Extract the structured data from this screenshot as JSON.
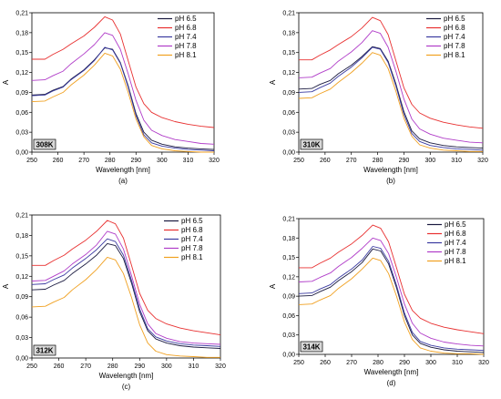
{
  "chart_data": [
    {
      "type": "line",
      "panel_label": "308K",
      "caption": "(a)",
      "xlabel": "Wavelength [nm]",
      "ylabel": "A",
      "xlim": [
        250,
        320
      ],
      "ylim": [
        0,
        0.21
      ],
      "xticks": [
        "250",
        "260",
        "270",
        "280",
        "290",
        "300",
        "310",
        "320"
      ],
      "yticks": [
        "0,00",
        "0,03",
        "0,06",
        "0,09",
        "0,12",
        "0,15",
        "0,18",
        "0,21"
      ],
      "legend_position": "top-right",
      "series": [
        {
          "name": "pH 6.5",
          "color": "#1a1a40",
          "x": [
            250,
            255,
            258,
            262,
            265,
            270,
            274,
            278,
            281,
            284,
            287,
            290,
            293,
            296,
            300,
            305,
            310,
            315,
            320
          ],
          "y": [
            0.086,
            0.087,
            0.093,
            0.099,
            0.11,
            0.124,
            0.139,
            0.157,
            0.155,
            0.135,
            0.1,
            0.058,
            0.03,
            0.018,
            0.012,
            0.008,
            0.006,
            0.005,
            0.004
          ]
        },
        {
          "name": "pH 6.8",
          "color": "#e83030",
          "x": [
            250,
            255,
            258,
            262,
            265,
            270,
            274,
            278,
            281,
            284,
            287,
            290,
            293,
            296,
            300,
            305,
            310,
            315,
            320
          ],
          "y": [
            0.14,
            0.14,
            0.147,
            0.155,
            0.163,
            0.175,
            0.188,
            0.204,
            0.199,
            0.178,
            0.138,
            0.098,
            0.073,
            0.06,
            0.052,
            0.046,
            0.042,
            0.039,
            0.037
          ]
        },
        {
          "name": "pH 7.4",
          "color": "#3a3aa0",
          "x": [
            250,
            255,
            258,
            262,
            265,
            270,
            274,
            278,
            281,
            284,
            287,
            290,
            293,
            296,
            300,
            305,
            310,
            315,
            320
          ],
          "y": [
            0.085,
            0.086,
            0.092,
            0.098,
            0.109,
            0.123,
            0.138,
            0.158,
            0.154,
            0.134,
            0.098,
            0.055,
            0.026,
            0.014,
            0.009,
            0.006,
            0.004,
            0.003,
            0.002
          ]
        },
        {
          "name": "pH 7.8",
          "color": "#b03cc8",
          "x": [
            250,
            255,
            258,
            262,
            265,
            270,
            274,
            278,
            281,
            284,
            287,
            290,
            293,
            296,
            300,
            305,
            310,
            315,
            320
          ],
          "y": [
            0.108,
            0.109,
            0.115,
            0.122,
            0.133,
            0.148,
            0.162,
            0.18,
            0.176,
            0.155,
            0.118,
            0.078,
            0.048,
            0.033,
            0.025,
            0.019,
            0.016,
            0.013,
            0.012
          ]
        },
        {
          "name": "pH 8.1",
          "color": "#f0a020",
          "x": [
            250,
            255,
            258,
            262,
            265,
            270,
            274,
            278,
            281,
            284,
            287,
            290,
            293,
            296,
            300,
            305,
            310,
            315,
            320
          ],
          "y": [
            0.076,
            0.077,
            0.083,
            0.09,
            0.101,
            0.116,
            0.131,
            0.149,
            0.145,
            0.125,
            0.09,
            0.05,
            0.023,
            0.01,
            0.005,
            0.002,
            0.001,
            0.0,
            0.0
          ]
        }
      ]
    },
    {
      "type": "line",
      "panel_label": "310K",
      "caption": "(b)",
      "xlabel": "Wavelength [nm]",
      "ylabel": "A",
      "xlim": [
        250,
        320
      ],
      "ylim": [
        0,
        0.21
      ],
      "xticks": [
        "250",
        "260",
        "270",
        "280",
        "290",
        "300",
        "310",
        "320"
      ],
      "yticks": [
        "0,00",
        "0,03",
        "0,06",
        "0,09",
        "0,12",
        "0,15",
        "0,18",
        "0,21"
      ],
      "legend_position": "top-right",
      "series": [
        {
          "name": "pH 6.5",
          "color": "#1a1a40",
          "x": [
            250,
            255,
            258,
            262,
            265,
            270,
            274,
            278,
            281,
            284,
            287,
            290,
            293,
            296,
            300,
            305,
            310,
            315,
            320
          ],
          "y": [
            0.095,
            0.096,
            0.102,
            0.108,
            0.118,
            0.131,
            0.144,
            0.159,
            0.156,
            0.137,
            0.102,
            0.061,
            0.032,
            0.02,
            0.014,
            0.01,
            0.008,
            0.007,
            0.006
          ]
        },
        {
          "name": "pH 6.8",
          "color": "#e83030",
          "x": [
            250,
            255,
            258,
            262,
            265,
            270,
            274,
            278,
            281,
            284,
            287,
            290,
            293,
            296,
            300,
            305,
            310,
            315,
            320
          ],
          "y": [
            0.139,
            0.139,
            0.146,
            0.154,
            0.162,
            0.174,
            0.187,
            0.203,
            0.198,
            0.177,
            0.137,
            0.097,
            0.072,
            0.059,
            0.051,
            0.045,
            0.041,
            0.038,
            0.036
          ]
        },
        {
          "name": "pH 7.4",
          "color": "#3a3aa0",
          "x": [
            250,
            255,
            258,
            262,
            265,
            270,
            274,
            278,
            281,
            284,
            287,
            290,
            293,
            296,
            300,
            305,
            310,
            315,
            320
          ],
          "y": [
            0.09,
            0.091,
            0.097,
            0.104,
            0.114,
            0.128,
            0.142,
            0.158,
            0.155,
            0.135,
            0.099,
            0.057,
            0.028,
            0.016,
            0.01,
            0.007,
            0.005,
            0.004,
            0.003
          ]
        },
        {
          "name": "pH 7.8",
          "color": "#b03cc8",
          "x": [
            250,
            255,
            258,
            262,
            265,
            270,
            274,
            278,
            281,
            284,
            287,
            290,
            293,
            296,
            300,
            305,
            310,
            315,
            320
          ],
          "y": [
            0.112,
            0.113,
            0.119,
            0.126,
            0.137,
            0.151,
            0.165,
            0.183,
            0.179,
            0.158,
            0.121,
            0.08,
            0.05,
            0.035,
            0.027,
            0.021,
            0.018,
            0.015,
            0.014
          ]
        },
        {
          "name": "pH 8.1",
          "color": "#f0a020",
          "x": [
            250,
            255,
            258,
            262,
            265,
            270,
            274,
            278,
            281,
            284,
            287,
            290,
            293,
            296,
            300,
            305,
            310,
            315,
            320
          ],
          "y": [
            0.081,
            0.082,
            0.088,
            0.095,
            0.105,
            0.12,
            0.134,
            0.15,
            0.146,
            0.126,
            0.091,
            0.051,
            0.024,
            0.011,
            0.006,
            0.003,
            0.002,
            0.001,
            0.001
          ]
        }
      ]
    },
    {
      "type": "line",
      "panel_label": "312K",
      "caption": "(c)",
      "xlabel": "Wavelength [nm]",
      "ylabel": "A",
      "xlim": [
        250,
        320
      ],
      "ylim": [
        0,
        0.21
      ],
      "xticks": [
        "250",
        "260",
        "270",
        "280",
        "290",
        "300",
        "310",
        "320"
      ],
      "yticks": [
        "0,00",
        "0,03",
        "0,06",
        "0,09",
        "0,12",
        "0,15",
        "0,18",
        "0,21"
      ],
      "legend_position": "top-right",
      "series": [
        {
          "name": "pH 6.5",
          "color": "#1a1a40",
          "x": [
            250,
            255,
            258,
            262,
            265,
            270,
            274,
            278,
            281,
            284,
            287,
            290,
            293,
            296,
            300,
            305,
            310,
            315,
            320
          ],
          "y": [
            0.1,
            0.101,
            0.107,
            0.114,
            0.124,
            0.138,
            0.151,
            0.168,
            0.165,
            0.146,
            0.11,
            0.068,
            0.04,
            0.028,
            0.022,
            0.018,
            0.016,
            0.015,
            0.014
          ]
        },
        {
          "name": "pH 6.8",
          "color": "#e83030",
          "x": [
            250,
            255,
            258,
            262,
            265,
            270,
            274,
            278,
            281,
            284,
            287,
            290,
            293,
            296,
            300,
            305,
            310,
            315,
            320
          ],
          "y": [
            0.136,
            0.136,
            0.143,
            0.151,
            0.16,
            0.173,
            0.186,
            0.202,
            0.197,
            0.176,
            0.136,
            0.095,
            0.07,
            0.058,
            0.05,
            0.044,
            0.04,
            0.037,
            0.034
          ]
        },
        {
          "name": "pH 7.4",
          "color": "#3a3aa0",
          "x": [
            250,
            255,
            258,
            262,
            265,
            270,
            274,
            278,
            281,
            284,
            287,
            290,
            293,
            296,
            300,
            305,
            310,
            315,
            320
          ],
          "y": [
            0.108,
            0.109,
            0.115,
            0.122,
            0.132,
            0.146,
            0.159,
            0.175,
            0.171,
            0.151,
            0.114,
            0.072,
            0.043,
            0.031,
            0.025,
            0.021,
            0.019,
            0.018,
            0.017
          ]
        },
        {
          "name": "pH 7.8",
          "color": "#b03cc8",
          "x": [
            250,
            255,
            258,
            262,
            265,
            270,
            274,
            278,
            281,
            284,
            287,
            290,
            293,
            296,
            300,
            305,
            310,
            315,
            320
          ],
          "y": [
            0.113,
            0.114,
            0.12,
            0.128,
            0.138,
            0.152,
            0.166,
            0.186,
            0.182,
            0.16,
            0.121,
            0.079,
            0.05,
            0.036,
            0.029,
            0.024,
            0.022,
            0.021,
            0.02
          ]
        },
        {
          "name": "pH 8.1",
          "color": "#f0a020",
          "x": [
            250,
            255,
            258,
            262,
            265,
            270,
            274,
            278,
            281,
            284,
            287,
            290,
            293,
            296,
            300,
            305,
            310,
            315,
            320
          ],
          "y": [
            0.075,
            0.076,
            0.082,
            0.089,
            0.1,
            0.115,
            0.13,
            0.148,
            0.144,
            0.124,
            0.089,
            0.049,
            0.022,
            0.01,
            0.005,
            0.003,
            0.002,
            0.001,
            0.001
          ]
        }
      ]
    },
    {
      "type": "line",
      "panel_label": "314K",
      "caption": "(d)",
      "xlabel": "Wavelength [nm]",
      "ylabel": "A",
      "xlim": [
        250,
        320
      ],
      "ylim": [
        0,
        0.21
      ],
      "xticks": [
        "250",
        "260",
        "270",
        "280",
        "290",
        "300",
        "310",
        "320"
      ],
      "yticks": [
        "0,00",
        "0,03",
        "0,06",
        "0,09",
        "0,12",
        "0,15",
        "0,18",
        "0,21"
      ],
      "legend_position": "top-right",
      "series": [
        {
          "name": "pH 6.5",
          "color": "#1a1a40",
          "x": [
            250,
            255,
            258,
            262,
            265,
            270,
            274,
            278,
            281,
            284,
            287,
            290,
            293,
            296,
            300,
            305,
            310,
            315,
            320
          ],
          "y": [
            0.09,
            0.091,
            0.097,
            0.104,
            0.114,
            0.128,
            0.142,
            0.163,
            0.16,
            0.14,
            0.103,
            0.06,
            0.03,
            0.017,
            0.011,
            0.007,
            0.005,
            0.004,
            0.003
          ]
        },
        {
          "name": "pH 6.8",
          "color": "#e83030",
          "x": [
            250,
            255,
            258,
            262,
            265,
            270,
            274,
            278,
            281,
            284,
            287,
            290,
            293,
            296,
            300,
            305,
            310,
            315,
            320
          ],
          "y": [
            0.134,
            0.134,
            0.141,
            0.149,
            0.158,
            0.171,
            0.184,
            0.2,
            0.195,
            0.174,
            0.134,
            0.093,
            0.068,
            0.056,
            0.048,
            0.042,
            0.038,
            0.035,
            0.032
          ]
        },
        {
          "name": "pH 7.4",
          "color": "#3a3aa0",
          "x": [
            250,
            255,
            258,
            262,
            265,
            270,
            274,
            278,
            281,
            284,
            287,
            290,
            293,
            296,
            300,
            305,
            310,
            315,
            320
          ],
          "y": [
            0.094,
            0.095,
            0.101,
            0.108,
            0.118,
            0.132,
            0.146,
            0.167,
            0.164,
            0.144,
            0.107,
            0.064,
            0.034,
            0.02,
            0.014,
            0.01,
            0.008,
            0.007,
            0.006
          ]
        },
        {
          "name": "pH 7.8",
          "color": "#b03cc8",
          "x": [
            250,
            255,
            258,
            262,
            265,
            270,
            274,
            278,
            281,
            284,
            287,
            290,
            293,
            296,
            300,
            305,
            310,
            315,
            320
          ],
          "y": [
            0.112,
            0.113,
            0.119,
            0.126,
            0.136,
            0.15,
            0.164,
            0.18,
            0.176,
            0.156,
            0.119,
            0.078,
            0.048,
            0.033,
            0.025,
            0.019,
            0.016,
            0.014,
            0.013
          ]
        },
        {
          "name": "pH 8.1",
          "color": "#f0a020",
          "x": [
            250,
            255,
            258,
            262,
            265,
            270,
            274,
            278,
            281,
            284,
            287,
            290,
            293,
            296,
            300,
            305,
            310,
            315,
            320
          ],
          "y": [
            0.077,
            0.078,
            0.084,
            0.091,
            0.102,
            0.117,
            0.132,
            0.149,
            0.145,
            0.125,
            0.09,
            0.05,
            0.023,
            0.01,
            0.005,
            0.002,
            0.001,
            0.001,
            0.0
          ]
        }
      ]
    }
  ]
}
